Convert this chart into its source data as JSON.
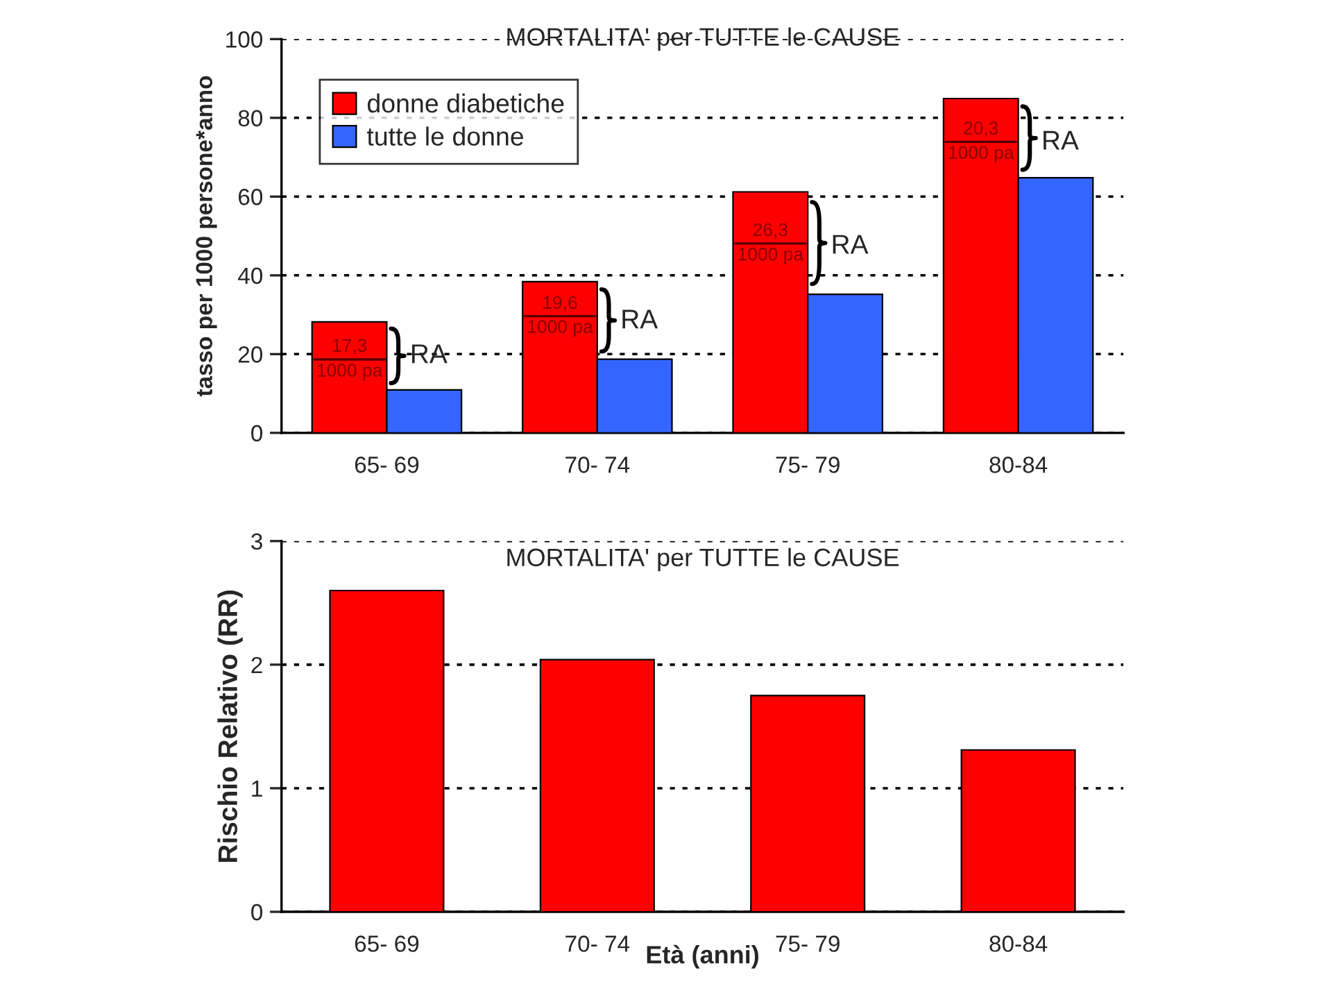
{
  "chart_data": [
    {
      "type": "bar",
      "title": "MORTALITA' per TUTTE le CAUSE",
      "ylabel": "tasso per 1000 persone*anno",
      "categories": [
        "65- 69",
        "70- 74",
        "75- 79",
        "80-84"
      ],
      "series": [
        {
          "name": "donne diabetiche",
          "color": "#ff0000",
          "values": [
            28.2,
            38.4,
            61.2,
            84.9
          ]
        },
        {
          "name": "tutte le donne",
          "color": "#3366ff",
          "values": [
            10.9,
            18.7,
            35.2,
            64.8
          ]
        }
      ],
      "ylim": [
        0,
        100
      ],
      "yticks": [
        0,
        20,
        40,
        60,
        80,
        100
      ],
      "grid": "y",
      "legend": "top left",
      "annotations": [
        {
          "text": "17,3",
          "x": "65- 69",
          "y": 21.8
        },
        {
          "text": "1000 pa",
          "x": "65- 69",
          "y": 15.5
        },
        {
          "text": "RA",
          "x": "65- 69",
          "y": 19.5
        },
        {
          "text": "19,6",
          "x": "70- 74",
          "y": 32.7
        },
        {
          "text": "1000 pa",
          "x": "70- 74",
          "y": 26.6
        },
        {
          "text": "RA",
          "x": "70- 74",
          "y": 28.3
        },
        {
          "text": "26,3",
          "x": "75- 79",
          "y": 51.2
        },
        {
          "text": "1000 pa",
          "x": "75- 79",
          "y": 45.0
        },
        {
          "text": "RA",
          "x": "75- 79",
          "y": 47.3
        },
        {
          "text": "20,3",
          "x": "80-84",
          "y": 77.0
        },
        {
          "text": "1000 pa",
          "x": "80-84",
          "y": 70.8
        },
        {
          "text": "RA",
          "x": "80-84",
          "y": 73.7
        }
      ]
    },
    {
      "type": "bar",
      "title": "MORTALITA' per TUTTE le CAUSE",
      "ylabel": "Rischio Relativo (RR)",
      "xlabel": "Età (anni)",
      "categories": [
        "65- 69",
        "70- 74",
        "75- 79",
        "80-84"
      ],
      "series": [
        {
          "color": "#ff0000",
          "values": [
            2.6,
            2.04,
            1.75,
            1.31
          ]
        }
      ],
      "ylim": [
        0,
        3
      ],
      "yticks": [
        0,
        1,
        2,
        3
      ],
      "grid": "y"
    }
  ]
}
